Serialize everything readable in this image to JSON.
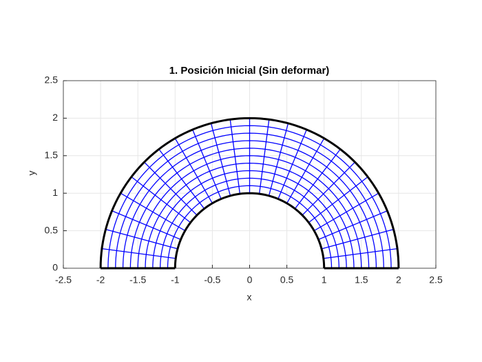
{
  "chart_data": {
    "type": "annulus-mesh",
    "title": "1. Posición Inicial (Sin deformar)",
    "xlabel": "x",
    "ylabel": "y",
    "xlim": [
      -2.5,
      2.5
    ],
    "ylim": [
      0,
      2.5
    ],
    "xticks": [
      -2.5,
      -2,
      -1.5,
      -1,
      -0.5,
      0,
      0.5,
      1,
      1.5,
      2,
      2.5
    ],
    "yticks": [
      0,
      0.5,
      1,
      1.5,
      2,
      2.5
    ],
    "inner_radius": 1,
    "outer_radius": 2,
    "radial_divisions": 10,
    "angular_divisions": 24,
    "mesh_color": "#0000ff",
    "boundary_color": "#000000",
    "grid": true
  }
}
